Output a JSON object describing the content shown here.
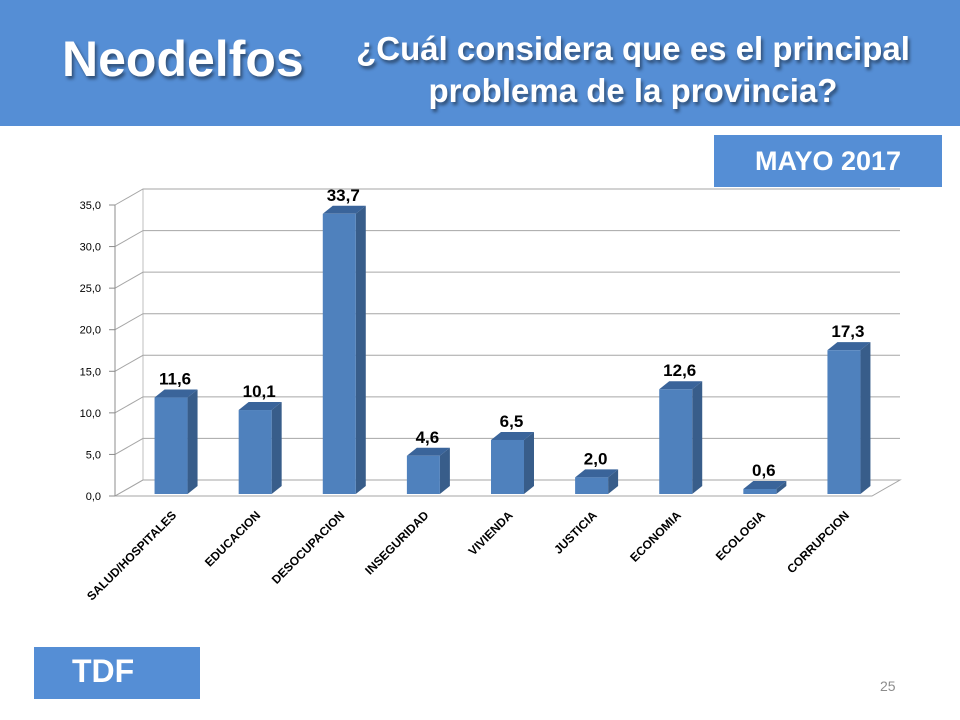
{
  "header": {
    "brand": "Neodelfos",
    "question_line1": "¿Cuál considera que es el principal",
    "question_line2": "problema de la provincia?"
  },
  "date_badge": "MAYO 2017",
  "region_badge": "TDF",
  "page_number": "25",
  "colors": {
    "header_bg": "#558ed5",
    "bar_front": "#4f81bd",
    "bar_side": "#385d8a",
    "bar_top": "#3a649a"
  },
  "chart_data": {
    "type": "bar",
    "categories": [
      "SALUD/HOSPITALES",
      "EDUCACION",
      "DESOCUPACION",
      "INSEGURIDAD",
      "VIVIENDA",
      "JUSTICIA",
      "ECONOMIA",
      "ECOLOGIA",
      "CORRUPCION"
    ],
    "values": [
      11.6,
      10.1,
      33.7,
      4.6,
      6.5,
      2.0,
      12.6,
      0.6,
      17.3
    ],
    "value_labels": [
      "11,6",
      "10,1",
      "33,7",
      "4,6",
      "6,5",
      "2,0",
      "12,6",
      "0,6",
      "17,3"
    ],
    "y_ticks": [
      "0,0",
      "5,0",
      "10,0",
      "15,0",
      "20,0",
      "25,0",
      "30,0",
      "35,0"
    ],
    "ylim": [
      0,
      35
    ],
    "grid": true,
    "legend": "none",
    "title": "",
    "xlabel": "",
    "ylabel": ""
  }
}
